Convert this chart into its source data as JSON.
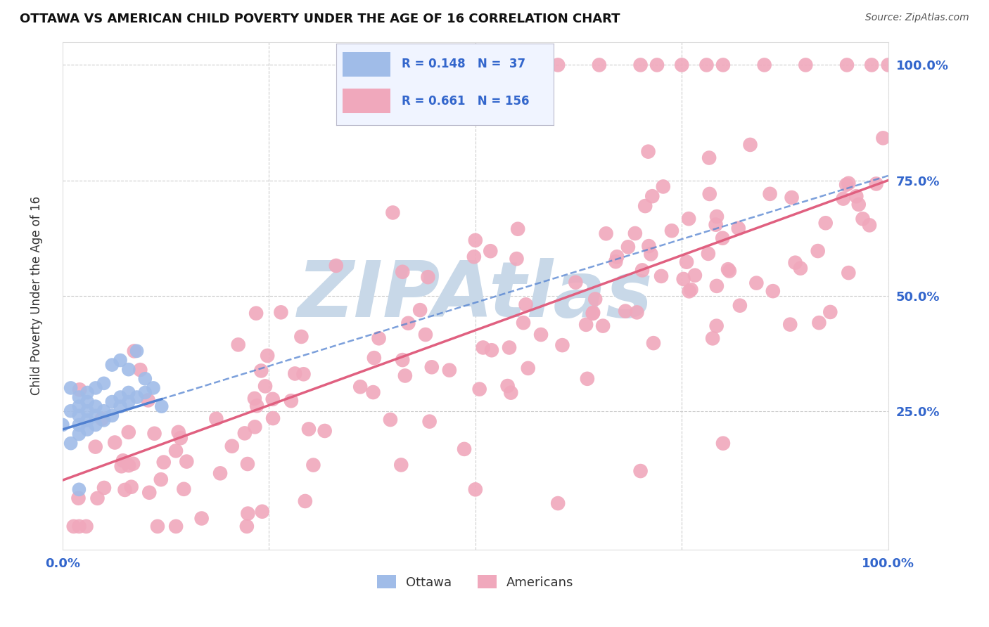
{
  "title": "OTTAWA VS AMERICAN CHILD POVERTY UNDER THE AGE OF 16 CORRELATION CHART",
  "source": "Source: ZipAtlas.com",
  "ylabel": "Child Poverty Under the Age of 16",
  "xlim": [
    0.0,
    1.0
  ],
  "ylim": [
    -0.05,
    1.05
  ],
  "background_color": "#ffffff",
  "watermark_text": "ZIPAtlas",
  "watermark_color": "#c8d8e8",
  "ottawa_color": "#a0bce8",
  "americans_color": "#f0a8bc",
  "ottawa_line_color": "#5080d0",
  "americans_line_color": "#e06080",
  "grid_color": "#cccccc",
  "ottawa_R": "0.148",
  "ottawa_N": "37",
  "americans_R": "0.661",
  "americans_N": "156",
  "stat_color": "#3366cc",
  "tick_color": "#3366cc",
  "title_color": "#111111",
  "source_color": "#555555",
  "ylabel_color": "#333333"
}
